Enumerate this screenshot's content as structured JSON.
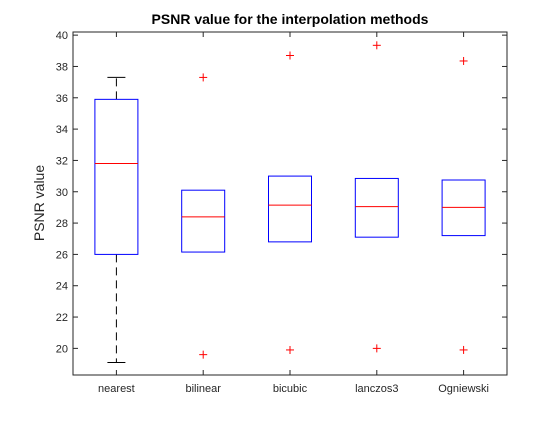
{
  "chart_data": {
    "type": "box",
    "title": "PSNR value for the interpolation methods",
    "xlabel": "",
    "ylabel": "PSNR value",
    "ylim": [
      18.3,
      40.2
    ],
    "yticks": [
      20,
      22,
      24,
      26,
      28,
      30,
      32,
      34,
      36,
      38,
      40
    ],
    "grid": false,
    "categories": [
      "nearest",
      "bilinear",
      "bicubic",
      "lanczos3",
      "Ogniewski"
    ],
    "boxes": [
      {
        "q1": 26.0,
        "median": 31.8,
        "q3": 35.9,
        "whisker_low": 19.1,
        "whisker_high": 37.3,
        "outliers": []
      },
      {
        "q1": 26.15,
        "median": 28.4,
        "q3": 30.1,
        "whisker_low": 26.15,
        "whisker_high": 30.1,
        "outliers": [
          37.3,
          19.6
        ]
      },
      {
        "q1": 26.8,
        "median": 29.15,
        "q3": 31.0,
        "whisker_low": 26.8,
        "whisker_high": 31.0,
        "outliers": [
          38.7,
          19.9
        ]
      },
      {
        "q1": 27.1,
        "median": 29.05,
        "q3": 30.85,
        "whisker_low": 27.1,
        "whisker_high": 30.85,
        "outliers": [
          39.35,
          20.0
        ]
      },
      {
        "q1": 27.2,
        "median": 29.0,
        "q3": 30.75,
        "whisker_low": 27.2,
        "whisker_high": 30.75,
        "outliers": [
          38.35,
          19.9
        ]
      }
    ],
    "colors": {
      "box": "#0000ff",
      "median": "#ff0000",
      "whisker": "#000000",
      "outlier": "#ff0000",
      "axis": "#262626"
    }
  }
}
